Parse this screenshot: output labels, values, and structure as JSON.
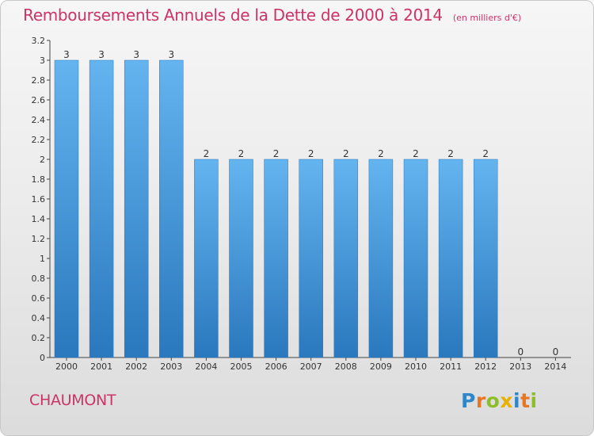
{
  "chart_data": {
    "type": "bar",
    "title": "Remboursements Annuels de la Dette de 2000 à 2014",
    "subtitle": "(en milliers d'€)",
    "categories": [
      "2000",
      "2001",
      "2002",
      "2003",
      "2004",
      "2005",
      "2006",
      "2007",
      "2008",
      "2009",
      "2010",
      "2011",
      "2012",
      "2013",
      "2014"
    ],
    "values": [
      3,
      3,
      3,
      3,
      2,
      2,
      2,
      2,
      2,
      2,
      2,
      2,
      2,
      0,
      0
    ],
    "data_labels": [
      "3",
      "3",
      "3",
      "3",
      "2",
      "2",
      "2",
      "2",
      "2",
      "2",
      "2",
      "2",
      "2",
      "0",
      "0"
    ],
    "ylim": [
      0,
      3.2
    ],
    "yticks": [
      "0",
      "0.2",
      "0.4",
      "0.6",
      "0.8",
      "1",
      "1.2",
      "1.4",
      "1.6",
      "1.8",
      "2",
      "2.2",
      "2.4",
      "2.6",
      "2.8",
      "3",
      "3.2"
    ],
    "xlabel": "",
    "ylabel": "",
    "grid": false,
    "bar_color": "#3a8fd8"
  },
  "commune": "CHAUMONT",
  "logo": {
    "text": "Proxiti",
    "letters": [
      {
        "ch": "P",
        "color": "#2f86c9"
      },
      {
        "ch": "r",
        "color": "#e87722"
      },
      {
        "ch": "o",
        "color": "#8cbf26"
      },
      {
        "ch": "x",
        "color": "#e8b000"
      },
      {
        "ch": "i",
        "color": "#2f86c9"
      },
      {
        "ch": "t",
        "color": "#e87722"
      },
      {
        "ch": "i",
        "color": "#8cbf26"
      }
    ]
  }
}
